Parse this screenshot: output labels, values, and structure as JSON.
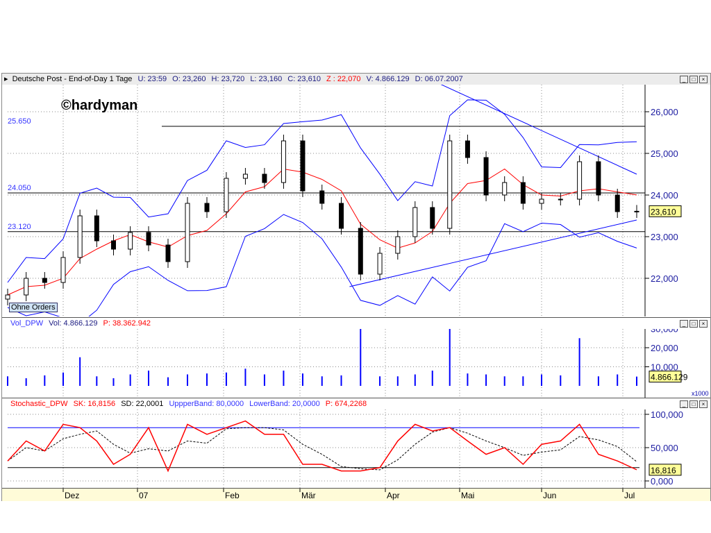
{
  "price_header": {
    "title": "Deutsche Post - End-of-Day 1 Tage",
    "u": "U: 23:59",
    "o": "O: 23,260",
    "h": "H: 23,720",
    "l": "L: 23,160",
    "c": "C: 23,610",
    "z": "Z : 22,070",
    "v": "V: 4.866.129",
    "d": "D: 06.07.2007"
  },
  "watermark": "©hardyman",
  "badge": "Ohne Orders",
  "vol_header": {
    "name": "Vol_DPW",
    "vol": "Vol: 4.866.129",
    "p": "P: 38.362.942"
  },
  "stoch_header": {
    "name": "Stochastic_DPW",
    "sk": "SK: 16,8156",
    "sd": "SD: 22,0001",
    "ub": "UppperBand: 80,0000",
    "lb": "LowerBand: 20,0000",
    "p": "P: 674,2268"
  },
  "colors": {
    "candle": "#000000",
    "bands": "#0000ff",
    "ma": "#ff0000",
    "volume": "#0000ff",
    "sk": "#ff0000",
    "sd": "#000000",
    "header_bg": "#ececec",
    "tag_bg": "#ffff99"
  },
  "chart_data": [
    {
      "type": "candlestick",
      "title": "Deutsche Post - End-of-Day 1 Tage",
      "ylim": [
        21100,
        26700
      ],
      "yticks": [
        "22,000",
        "23,000",
        "24,000",
        "25,000",
        "26,000"
      ],
      "ytick_values": [
        22000,
        23000,
        24000,
        25000,
        26000
      ],
      "last_value_label": "23,610",
      "last_value": 23610,
      "dates": [
        "2006-11-10",
        "2006-11-17",
        "2006-11-24",
        "2006-12-01",
        "2006-12-08",
        "2006-12-15",
        "2006-12-22",
        "2006-12-29",
        "2007-01-05",
        "2007-01-12",
        "2007-01-19",
        "2007-01-26",
        "2007-02-02",
        "2007-02-09",
        "2007-02-16",
        "2007-02-23",
        "2007-03-02",
        "2007-03-09",
        "2007-03-16",
        "2007-03-23",
        "2007-03-30",
        "2007-04-06",
        "2007-04-13",
        "2007-04-20",
        "2007-04-27",
        "2007-05-04",
        "2007-05-11",
        "2007-05-18",
        "2007-05-25",
        "2007-06-01",
        "2007-06-08",
        "2007-06-15",
        "2007-06-22",
        "2007-06-29",
        "2007-07-06"
      ],
      "close": [
        21600,
        22000,
        21900,
        22500,
        23500,
        22900,
        22700,
        23100,
        22800,
        22400,
        23800,
        23600,
        24400,
        24500,
        24300,
        25300,
        24100,
        23800,
        23200,
        22100,
        22600,
        23000,
        23700,
        23200,
        25300,
        24900,
        24000,
        24300,
        23800,
        23900,
        23900,
        24800,
        24000,
        23600,
        23610
      ],
      "hlines": [
        {
          "label": "25.650",
          "value": 25650
        },
        {
          "label": "24.050",
          "value": 24050
        },
        {
          "label": "23.120",
          "value": 23120
        }
      ],
      "trendlines": [
        {
          "from": [
            "2007-04-20",
            26750
          ],
          "to": [
            "2007-07-06",
            24500
          ]
        },
        {
          "from": [
            "2007-03-19",
            21800
          ],
          "to": [
            "2007-07-06",
            23400
          ]
        }
      ],
      "grid": true
    },
    {
      "type": "bar",
      "title": "Vol_DPW",
      "unit": "x1000",
      "ylim": [
        0,
        33000
      ],
      "yticks": [
        "10,000",
        "20,000",
        "30,000"
      ],
      "ytick_values": [
        10000,
        20000,
        30000
      ],
      "last_value_label": "4.866.129",
      "last_value": 4866,
      "values": [
        5000,
        4000,
        5500,
        7000,
        15000,
        5000,
        4000,
        6000,
        8000,
        4500,
        6000,
        6500,
        7000,
        9000,
        6000,
        8000,
        6500,
        5000,
        5500,
        31000,
        5000,
        5000,
        6000,
        8000,
        33000,
        6500,
        6000,
        5000,
        5000,
        6000,
        5500,
        25000,
        5000,
        6000,
        4866
      ]
    },
    {
      "type": "line",
      "title": "Stochastic_DPW",
      "ylim": [
        -5,
        105
      ],
      "yticks": [
        "0,000",
        "50,000",
        "100,000"
      ],
      "ytick_values": [
        0,
        50,
        100
      ],
      "last_value_label": "16,816",
      "last_value": 16.816,
      "upper_band": 80,
      "lower_band": 20,
      "sk": [
        30,
        60,
        45,
        85,
        80,
        60,
        25,
        40,
        80,
        15,
        85,
        70,
        80,
        90,
        70,
        70,
        25,
        25,
        15,
        15,
        20,
        60,
        85,
        75,
        80,
        60,
        40,
        50,
        25,
        55,
        60,
        85,
        40,
        30,
        16.8
      ]
    }
  ],
  "x_labels": [
    {
      "label": "Dez",
      "date": "2006-12-01"
    },
    {
      "label": "07",
      "date": "2007-01-01"
    },
    {
      "label": "Feb",
      "date": "2007-02-01"
    },
    {
      "label": "Mär",
      "date": "2007-03-01"
    },
    {
      "label": "Apr",
      "date": "2007-04-01"
    },
    {
      "label": "Mai",
      "date": "2007-05-01"
    },
    {
      "label": "Jun",
      "date": "2007-06-01"
    },
    {
      "label": "Jul",
      "date": "2007-07-01"
    }
  ]
}
